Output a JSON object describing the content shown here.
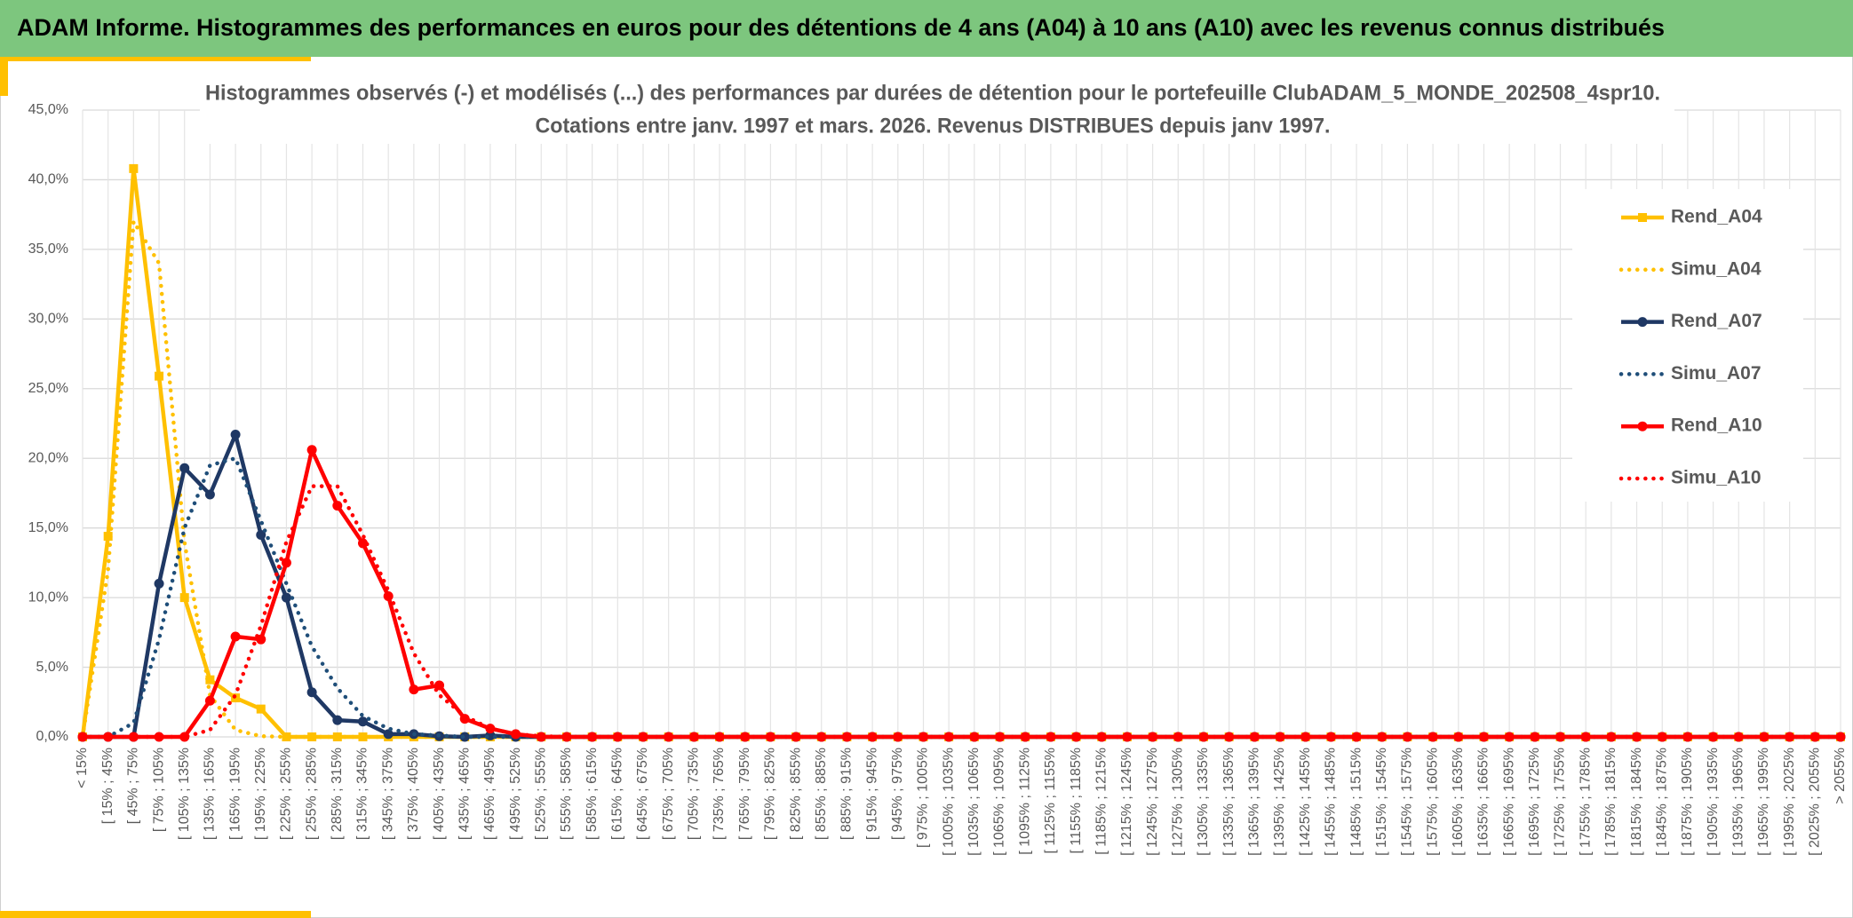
{
  "header": {
    "title": "ADAM Informe. Histogrammes des performances en euros pour des détentions de 4 ans (A04) à 10 ans (A10) avec les revenus connus distribués"
  },
  "chart_data": {
    "type": "line",
    "title": [
      "Histogrammes observés (-) et modélisés (...) des performances par durées de détention pour le portefeuille ClubADAM_5_MONDE_202508_4spr10.",
      "Cotations entre janv. 1997 et mars. 2026. Revenus DISTRIBUES depuis janv 1997."
    ],
    "categories": [
      "< 15%",
      "[ 15% ; 45%",
      "[ 45% ; 75%",
      "[ 75% ; 105%",
      "[ 105% ; 135%",
      "[ 135% ; 165%",
      "[ 165% ; 195%",
      "[ 195% ; 225%",
      "[ 225% ; 255%",
      "[ 255% ; 285%",
      "[ 285% ; 315%",
      "[ 315% ; 345%",
      "[ 345% ; 375%",
      "[ 375% ; 405%",
      "[ 405% ; 435%",
      "[ 435% ; 465%",
      "[ 465% ; 495%",
      "[ 495% ; 525%",
      "[ 525% ; 555%",
      "[ 555% ; 585%",
      "[ 585% ; 615%",
      "[ 615% ; 645%",
      "[ 645% ; 675%",
      "[ 675% ; 705%",
      "[ 705% ; 735%",
      "[ 735% ; 765%",
      "[ 765% ; 795%",
      "[ 795% ; 825%",
      "[ 825% ; 855%",
      "[ 855% ; 885%",
      "[ 885% ; 915%",
      "[ 915% ; 945%",
      "[ 945% ; 975%",
      "[ 975% ; 1005%",
      "[ 1005% ; 1035%",
      "[ 1035% ; 1065%",
      "[ 1065% ; 1095%",
      "[ 1095% ; 1125%",
      "[ 1125% ; 1155%",
      "[ 1155% ; 1185%",
      "[ 1185% ; 1215%",
      "[ 1215% ; 1245%",
      "[ 1245% ; 1275%",
      "[ 1275% ; 1305%",
      "[ 1305% ; 1335%",
      "[ 1335% ; 1365%",
      "[ 1365% ; 1395%",
      "[ 1395% ; 1425%",
      "[ 1425% ; 1455%",
      "[ 1455% ; 1485%",
      "[ 1485% ; 1515%",
      "[ 1515% ; 1545%",
      "[ 1545% ; 1575%",
      "[ 1575% ; 1605%",
      "[ 1605% ; 1635%",
      "[ 1635% ; 1665%",
      "[ 1665% ; 1695%",
      "[ 1695% ; 1725%",
      "[ 1725% ; 1755%",
      "[ 1755% ; 1785%",
      "[ 1785% ; 1815%",
      "[ 1815% ; 1845%",
      "[ 1845% ; 1875%",
      "[ 1875% ; 1905%",
      "[ 1905% ; 1935%",
      "[ 1935% ; 1965%",
      "[ 1965% ; 1995%",
      "[ 1995% ; 2025%",
      "[ 2025% ; 2055%",
      "> 2055%"
    ],
    "series": [
      {
        "name": "Rend_A04",
        "color": "#ffc000",
        "style": "solid",
        "marker": "square",
        "values": [
          0,
          14.4,
          40.8,
          25.9,
          10.0,
          4.1,
          2.8,
          2.0,
          0,
          0,
          0,
          0,
          0,
          0,
          0,
          0,
          0,
          0,
          0,
          0,
          0,
          0,
          0,
          0,
          0,
          0,
          0,
          0,
          0,
          0,
          0,
          0,
          0,
          0,
          0,
          0,
          0,
          0,
          0,
          0,
          0,
          0,
          0,
          0,
          0,
          0,
          0,
          0,
          0,
          0,
          0,
          0,
          0,
          0,
          0,
          0,
          0,
          0,
          0,
          0,
          0,
          0,
          0,
          0,
          0,
          0,
          0,
          0,
          0,
          0
        ]
      },
      {
        "name": "Simu_A04",
        "color": "#ffc000",
        "style": "dotted",
        "values": [
          0,
          12,
          37,
          34,
          14,
          3,
          0.5,
          0.05,
          0,
          0,
          0,
          0,
          0,
          0,
          0,
          0,
          0,
          0,
          0,
          0,
          0,
          0,
          0,
          0,
          0,
          0,
          0,
          0,
          0,
          0,
          0,
          0,
          0,
          0,
          0,
          0,
          0,
          0,
          0,
          0,
          0,
          0,
          0,
          0,
          0,
          0,
          0,
          0,
          0,
          0,
          0,
          0,
          0,
          0,
          0,
          0,
          0,
          0,
          0,
          0,
          0,
          0,
          0,
          0,
          0,
          0,
          0,
          0,
          0,
          0
        ]
      },
      {
        "name": "Rend_A07",
        "color": "#1f3864",
        "style": "solid",
        "marker": "circle",
        "values": [
          0,
          0,
          0,
          11,
          19.3,
          17.4,
          21.7,
          14.5,
          10,
          3.2,
          1.2,
          1.1,
          0.2,
          0.2,
          0.05,
          0,
          0.1,
          0,
          0,
          0,
          0,
          0,
          0,
          0,
          0,
          0,
          0,
          0,
          0,
          0,
          0,
          0,
          0,
          0,
          0,
          0,
          0,
          0,
          0,
          0,
          0,
          0,
          0,
          0,
          0,
          0,
          0,
          0,
          0,
          0,
          0,
          0,
          0,
          0,
          0,
          0,
          0,
          0,
          0,
          0,
          0,
          0,
          0,
          0,
          0,
          0,
          0,
          0,
          0,
          0
        ]
      },
      {
        "name": "Simu_A07",
        "color": "#1f4e79",
        "style": "dotted",
        "values": [
          0,
          0,
          1,
          7,
          15,
          19.5,
          20,
          15.5,
          11,
          6.5,
          3.5,
          1.5,
          0.6,
          0.2,
          0.1,
          0,
          0,
          0,
          0,
          0,
          0,
          0,
          0,
          0,
          0,
          0,
          0,
          0,
          0,
          0,
          0,
          0,
          0,
          0,
          0,
          0,
          0,
          0,
          0,
          0,
          0,
          0,
          0,
          0,
          0,
          0,
          0,
          0,
          0,
          0,
          0,
          0,
          0,
          0,
          0,
          0,
          0,
          0,
          0,
          0,
          0,
          0,
          0,
          0,
          0,
          0,
          0,
          0,
          0,
          0
        ]
      },
      {
        "name": "Rend_A10",
        "color": "#ff0000",
        "style": "solid",
        "marker": "circle",
        "values": [
          0,
          0,
          0,
          0,
          0,
          2.6,
          7.2,
          7.0,
          12.5,
          20.6,
          16.6,
          13.9,
          10.1,
          3.4,
          3.7,
          1.3,
          0.6,
          0.2,
          0,
          0,
          0,
          0,
          0,
          0,
          0,
          0,
          0,
          0,
          0,
          0,
          0,
          0,
          0,
          0,
          0,
          0,
          0,
          0,
          0,
          0,
          0,
          0,
          0,
          0,
          0,
          0,
          0,
          0,
          0,
          0,
          0,
          0,
          0,
          0,
          0,
          0,
          0,
          0,
          0,
          0,
          0,
          0,
          0,
          0,
          0,
          0,
          0,
          0,
          0,
          0
        ]
      },
      {
        "name": "Simu_A10",
        "color": "#ff0000",
        "style": "dotted",
        "values": [
          0,
          0,
          0,
          0,
          0,
          0.5,
          3,
          8,
          14,
          18,
          18,
          14.5,
          10.5,
          6,
          3,
          1.5,
          0.6,
          0.2,
          0.05,
          0,
          0,
          0,
          0,
          0,
          0,
          0,
          0,
          0,
          0,
          0,
          0,
          0,
          0,
          0,
          0,
          0,
          0,
          0,
          0,
          0,
          0,
          0,
          0,
          0,
          0,
          0,
          0,
          0,
          0,
          0,
          0,
          0,
          0,
          0,
          0,
          0,
          0,
          0,
          0,
          0,
          0,
          0,
          0,
          0,
          0,
          0,
          0,
          0,
          0,
          0
        ]
      }
    ],
    "ylim": [
      0,
      45
    ],
    "yticks": [
      {
        "value": 0,
        "label": "0,0%"
      },
      {
        "value": 5,
        "label": "5,0%"
      },
      {
        "value": 10,
        "label": "10,0%"
      },
      {
        "value": 15,
        "label": "15,0%"
      },
      {
        "value": 20,
        "label": "20,0%"
      },
      {
        "value": 25,
        "label": "25,0%"
      },
      {
        "value": 30,
        "label": "30,0%"
      },
      {
        "value": 35,
        "label": "35,0%"
      },
      {
        "value": 40,
        "label": "40,0%"
      },
      {
        "value": 45,
        "label": "45,0%"
      }
    ],
    "grid": true,
    "legend": "right"
  }
}
